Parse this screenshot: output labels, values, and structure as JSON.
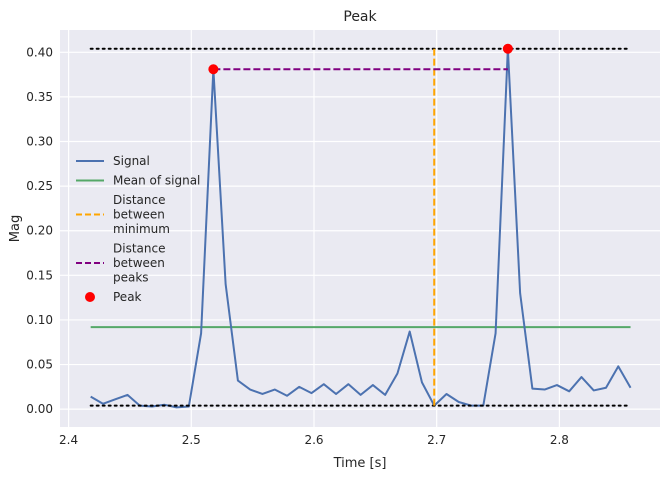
{
  "chart_data": {
    "type": "line",
    "title": "Peak",
    "xlabel": "Time [s]",
    "ylabel": "Mag",
    "xlim": [
      2.393,
      2.882
    ],
    "ylim": [
      -0.02,
      0.425
    ],
    "xticks": [
      2.4,
      2.5,
      2.6,
      2.7,
      2.8
    ],
    "xtick_labels": [
      "2.4",
      "2.5",
      "2.6",
      "2.7",
      "2.8"
    ],
    "yticks": [
      0.0,
      0.05,
      0.1,
      0.15,
      0.2,
      0.25,
      0.3,
      0.35,
      0.4
    ],
    "ytick_labels": [
      "0.00",
      "0.05",
      "0.10",
      "0.15",
      "0.20",
      "0.25",
      "0.30",
      "0.35",
      "0.40"
    ],
    "grid": true,
    "legend_position": "center-left",
    "colors": {
      "signal": "#4c72b0",
      "mean": "#55a868",
      "min_distance": "#ffa500",
      "peak_distance": "#800080",
      "peak": "#ff0000",
      "extremes": "#000000",
      "background": "#eaeaf2"
    },
    "series": [
      {
        "name": "Signal",
        "x": [
          2.418,
          2.428,
          2.438,
          2.448,
          2.458,
          2.468,
          2.478,
          2.488,
          2.498,
          2.508,
          2.518,
          2.528,
          2.538,
          2.548,
          2.558,
          2.568,
          2.578,
          2.588,
          2.598,
          2.608,
          2.618,
          2.628,
          2.638,
          2.648,
          2.658,
          2.668,
          2.678,
          2.688,
          2.698,
          2.708,
          2.718,
          2.728,
          2.738,
          2.748,
          2.758,
          2.768,
          2.778,
          2.788,
          2.798,
          2.808,
          2.818,
          2.828,
          2.838,
          2.848,
          2.858
        ],
        "y": [
          0.014,
          0.006,
          0.011,
          0.016,
          0.004,
          0.003,
          0.005,
          0.002,
          0.003,
          0.085,
          0.381,
          0.14,
          0.032,
          0.022,
          0.017,
          0.022,
          0.015,
          0.025,
          0.018,
          0.028,
          0.017,
          0.028,
          0.016,
          0.027,
          0.016,
          0.04,
          0.087,
          0.03,
          0.004,
          0.017,
          0.008,
          0.004,
          0.004,
          0.085,
          0.404,
          0.13,
          0.023,
          0.022,
          0.027,
          0.02,
          0.036,
          0.021,
          0.024,
          0.048,
          0.024
        ]
      },
      {
        "name": "Mean of signal",
        "x": [
          2.418,
          2.858
        ],
        "y": [
          0.092,
          0.092
        ]
      }
    ],
    "extremes": {
      "x": [
        2.418,
        2.858
      ],
      "max_y": 0.404,
      "min_y": 0.004
    },
    "min_distance_x": 2.698,
    "peak_distance": {
      "x": [
        2.518,
        2.758
      ],
      "y": 0.381
    },
    "peaks": {
      "x": [
        2.518,
        2.758
      ],
      "y": [
        0.381,
        0.404
      ]
    },
    "legend": [
      {
        "type": "line",
        "color_key": "signal",
        "dash": "",
        "lines": [
          "Signal"
        ]
      },
      {
        "type": "line",
        "color_key": "mean",
        "dash": "",
        "lines": [
          "Mean of signal"
        ]
      },
      {
        "type": "line",
        "color_key": "min_distance",
        "dash": "6,3",
        "lines": [
          "Distance",
          "between",
          "minimum"
        ]
      },
      {
        "type": "line",
        "color_key": "peak_distance",
        "dash": "6,3",
        "lines": [
          "Distance",
          "between",
          "peaks"
        ]
      },
      {
        "type": "marker",
        "color_key": "peak",
        "dash": "",
        "lines": [
          "Peak"
        ]
      }
    ]
  }
}
